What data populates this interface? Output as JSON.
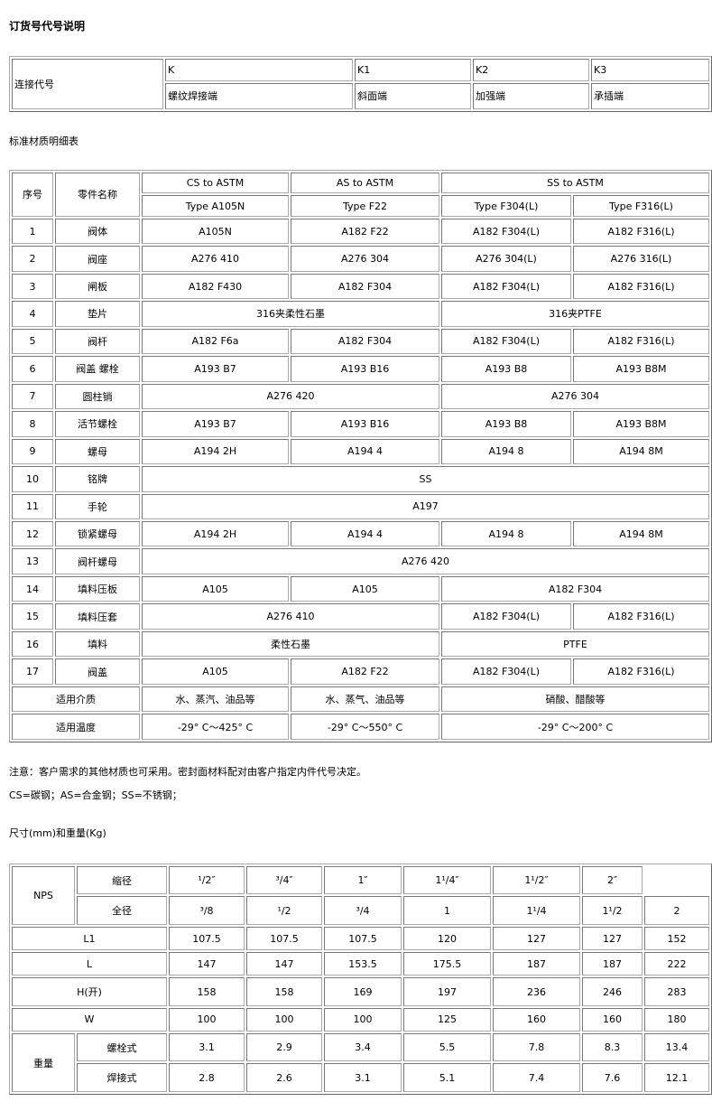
{
  "title": "订货号代号说明",
  "connection": {
    "label": "连接代号",
    "codes": [
      "K",
      "K1",
      "K2",
      "K3"
    ],
    "names": [
      "螺纹焊接端",
      "斜面端",
      "加强端",
      "承插端"
    ]
  },
  "materials": {
    "title": "标准材质明细表",
    "header": {
      "no": "序号",
      "part": "零件名称",
      "groups": [
        "CS to ASTM",
        "AS to ASTM",
        "SS to ASTM"
      ],
      "types": [
        "Type A105N",
        "Type F22",
        "Type F304(L)",
        "Type F316(L)"
      ]
    },
    "rows": [
      {
        "no": "1",
        "part": "阀体",
        "cells": [
          "A105N",
          "A182 F22",
          "A182 F304(L)",
          "A182 F316(L)"
        ]
      },
      {
        "no": "2",
        "part": "阀座",
        "cells": [
          "A276 410",
          "A276 304",
          "A276 304(L)",
          "A276 316(L)"
        ]
      },
      {
        "no": "3",
        "part": "闸板",
        "cells": [
          "A182 F430",
          "A182 F304",
          "A182 F304(L)",
          "A182 F316(L)"
        ]
      },
      {
        "no": "4",
        "part": "垫片",
        "cells": [
          "316夹柔性石墨",
          null,
          "316夹PTFE",
          null
        ]
      },
      {
        "no": "5",
        "part": "阀杆",
        "cells": [
          "A182 F6a",
          "A182 F304",
          "A182 F304(L)",
          "A182 F316(L)"
        ]
      },
      {
        "no": "6",
        "part": "阀盖 螺栓",
        "cells": [
          "A193 B7",
          "A193 B16",
          "A193 B8",
          "A193 B8M"
        ]
      },
      {
        "no": "7",
        "part": "圆柱销",
        "cells": [
          "A276 420",
          null,
          "A276 304",
          null
        ]
      },
      {
        "no": "8",
        "part": "活节螺栓",
        "cells": [
          "A193 B7",
          "A193 B16",
          "A193 B8",
          "A193 B8M"
        ]
      },
      {
        "no": "9",
        "part": "螺母",
        "cells": [
          "A194 2H",
          "A194 4",
          "A194 8",
          "A194 8M"
        ]
      },
      {
        "no": "10",
        "part": "铭牌",
        "cells": [
          "SS",
          null,
          null,
          null
        ]
      },
      {
        "no": "11",
        "part": "手轮",
        "cells": [
          "A197",
          null,
          null,
          null
        ]
      },
      {
        "no": "12",
        "part": "锁紧螺母",
        "cells": [
          "A194 2H",
          "A194 4",
          "A194 8",
          "A194 8M"
        ]
      },
      {
        "no": "13",
        "part": "阀杆螺母",
        "cells": [
          "A276 420",
          null,
          null,
          null
        ]
      },
      {
        "no": "14",
        "part": "填料压板",
        "cells": [
          "A105",
          "A105",
          "A182 F304",
          null
        ]
      },
      {
        "no": "15",
        "part": "填料压套",
        "cells": [
          "A276 410",
          null,
          "A182 F304(L)",
          "A182 F316(L)"
        ]
      },
      {
        "no": "16",
        "part": "填料",
        "cells": [
          "柔性石墨",
          null,
          "PTFE",
          null
        ]
      },
      {
        "no": "17",
        "part": "阀盖",
        "cells": [
          "A105",
          "A182 F22",
          "A182 F304(L)",
          "A182 F316(L)"
        ]
      }
    ],
    "footer": [
      {
        "label": "适用介质",
        "cells": [
          "水、蒸汽、油品等",
          "水、蒸气、油品等",
          "硝酸、醋酸等",
          null
        ]
      },
      {
        "label": "适用温度",
        "cells": [
          "-29° C～425° C",
          "-29° C～550° C",
          "-29° C～200° C",
          null
        ]
      }
    ]
  },
  "notes": [
    "注意：客户需求的其他材质也可采用。密封面材料配对由客户指定内件代号决定。",
    "CS=碳钢；AS=合金钢；SS=不锈钢；"
  ],
  "dimensions": {
    "title": "尺寸(mm)和重量(Kg)",
    "nps": "NPS",
    "reduced": {
      "label": "缩径",
      "values": [
        "¹/2″",
        "³/4″",
        "1″",
        "1¹/4″",
        "1¹/2″",
        "2″"
      ]
    },
    "full": {
      "label": "全径",
      "values": [
        "³/8",
        "¹/2",
        "³/4",
        "1",
        "1¹/4",
        "1¹/2",
        "2"
      ]
    },
    "rows": [
      {
        "label": "L1",
        "values": [
          "107.5",
          "107.5",
          "107.5",
          "120",
          "127",
          "127",
          "152"
        ]
      },
      {
        "label": "L",
        "values": [
          "147",
          "147",
          "153.5",
          "175.5",
          "187",
          "187",
          "222"
        ]
      },
      {
        "label": "H(开)",
        "values": [
          "158",
          "158",
          "169",
          "197",
          "236",
          "246",
          "283"
        ]
      },
      {
        "label": "W",
        "values": [
          "100",
          "100",
          "100",
          "125",
          "160",
          "160",
          "180"
        ]
      }
    ],
    "weight": {
      "label": "重量",
      "rows": [
        {
          "label": "螺栓式",
          "values": [
            "3.1",
            "2.9",
            "3.4",
            "5.5",
            "7.8",
            "8.3",
            "13.4"
          ]
        },
        {
          "label": "焊接式",
          "values": [
            "2.8",
            "2.6",
            "3.1",
            "5.1",
            "7.4",
            "7.6",
            "12.1"
          ]
        }
      ]
    }
  }
}
